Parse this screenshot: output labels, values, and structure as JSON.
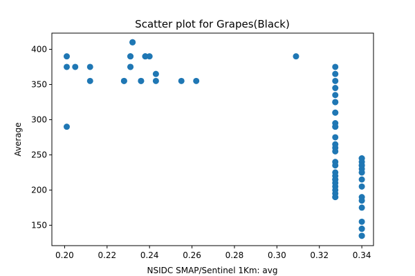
{
  "chart_data": {
    "type": "scatter",
    "title": "Scatter plot for Grapes(Black)",
    "xlabel": "NSIDC SMAP/Sentinel 1Km: avg",
    "ylabel": "Average",
    "xlim": [
      0.194,
      0.3455
    ],
    "ylim": [
      121,
      423
    ],
    "xticks": [
      0.2,
      0.22,
      0.24,
      0.26,
      0.28,
      0.3,
      0.32,
      0.34
    ],
    "xtick_labels": [
      "0.20",
      "0.22",
      "0.24",
      "0.26",
      "0.28",
      "0.30",
      "0.32",
      "0.34"
    ],
    "yticks": [
      150,
      200,
      250,
      300,
      350,
      400
    ],
    "ytick_labels": [
      "150",
      "200",
      "250",
      "300",
      "350",
      "400"
    ],
    "grid": false,
    "marker_color": "#1f77b4",
    "series": [
      {
        "x": [
          0.201,
          0.201,
          0.201,
          0.205,
          0.212,
          0.212,
          0.228,
          0.228,
          0.231,
          0.231,
          0.231,
          0.231,
          0.232,
          0.232,
          0.236,
          0.236,
          0.238,
          0.238,
          0.24,
          0.243,
          0.243,
          0.255,
          0.262,
          0.309,
          0.3275,
          0.3275,
          0.3275,
          0.3275,
          0.3275,
          0.3275,
          0.3275,
          0.3275,
          0.3275,
          0.3275,
          0.3275,
          0.3275,
          0.3275,
          0.3275,
          0.3275,
          0.3275,
          0.3275,
          0.3275,
          0.3275,
          0.3275,
          0.3275,
          0.3275,
          0.3275,
          0.3275,
          0.3275,
          0.3275,
          0.3275,
          0.3275,
          0.34,
          0.34,
          0.34,
          0.34,
          0.34,
          0.34,
          0.34,
          0.34,
          0.34,
          0.34,
          0.34,
          0.34,
          0.34,
          0.34,
          0.34,
          0.34,
          0.34,
          0.34
        ],
        "y": [
          390,
          375,
          290,
          375,
          375,
          355,
          355,
          355,
          390,
          390,
          375,
          375,
          410,
          410,
          355,
          355,
          390,
          390,
          390,
          365,
          355,
          355,
          355,
          390,
          375,
          365,
          355,
          345,
          335,
          325,
          310,
          310,
          295,
          290,
          275,
          265,
          260,
          255,
          240,
          235,
          225,
          220,
          215,
          210,
          205,
          200,
          195,
          190,
          190,
          215,
          325,
          290,
          245,
          240,
          235,
          230,
          225,
          225,
          215,
          205,
          190,
          185,
          175,
          155,
          145,
          145,
          135,
          135,
          235,
          245
        ]
      }
    ]
  }
}
